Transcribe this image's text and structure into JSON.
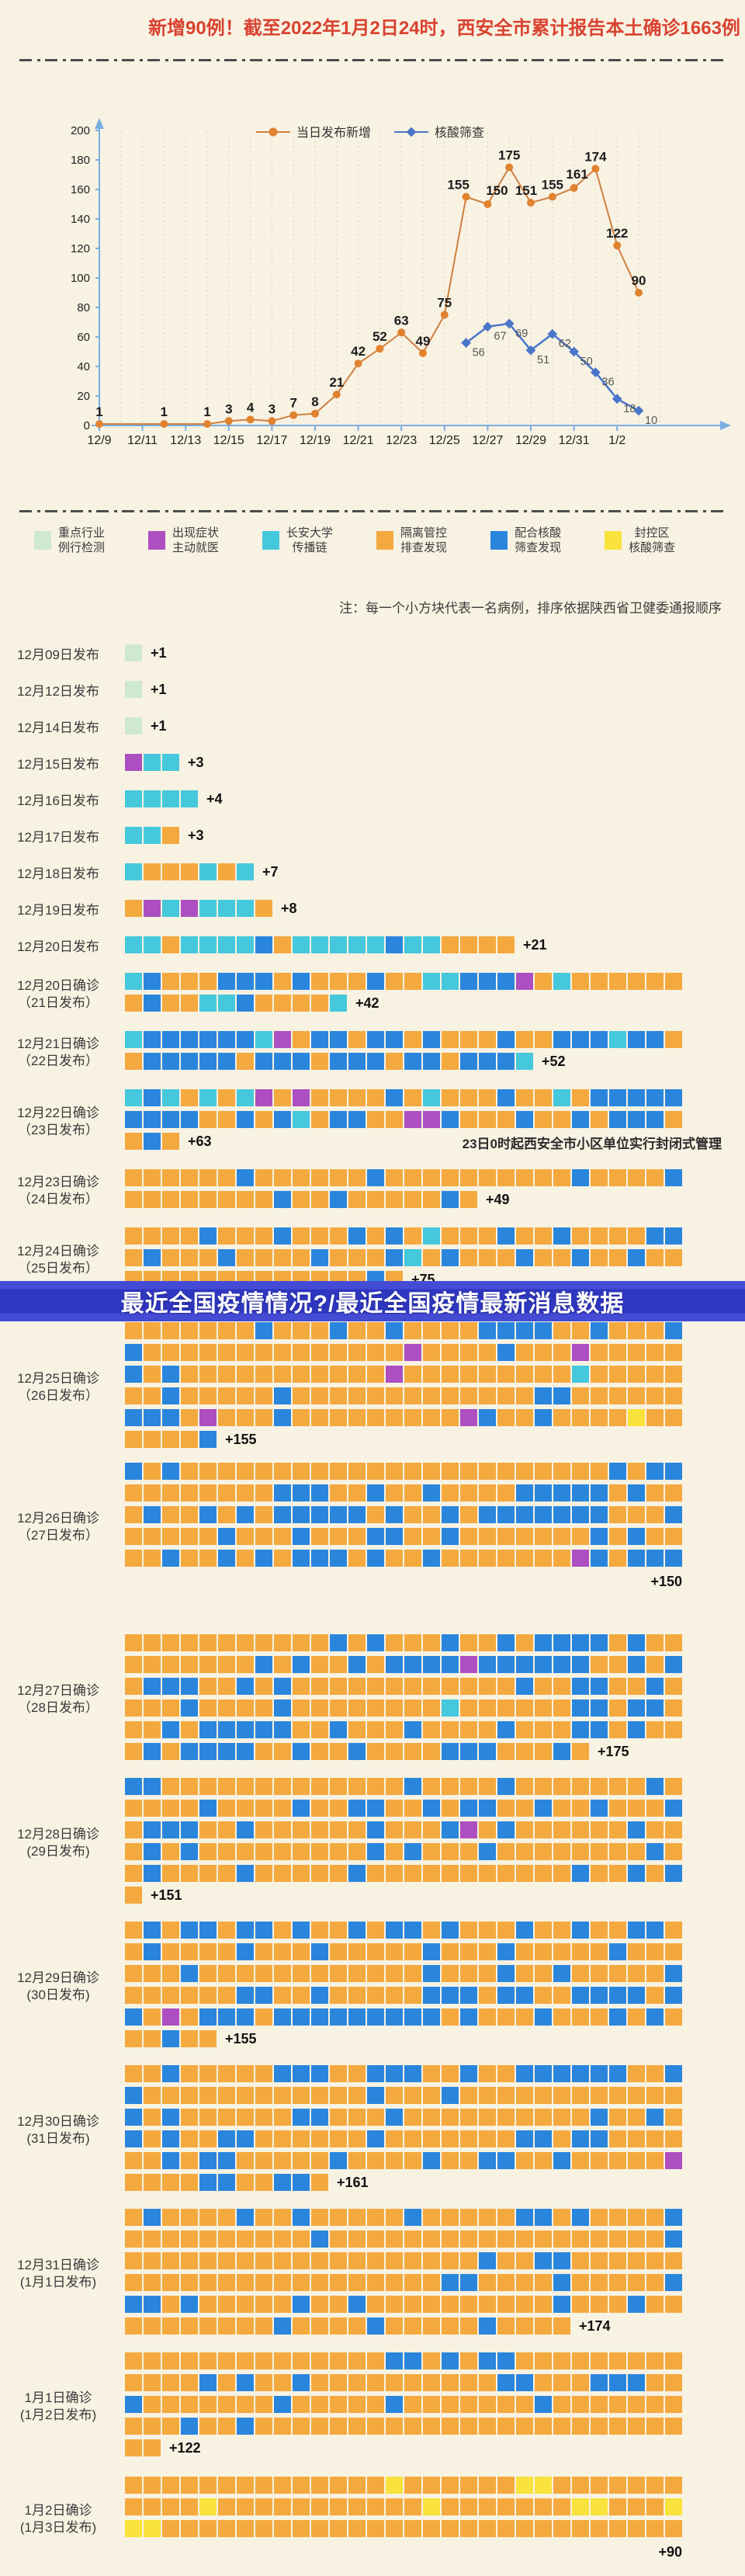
{
  "header": {
    "title": "新增90例！截至2022年1月2日24时，西安全市累计报告本土确诊1663例"
  },
  "banner": {
    "text": "最近全国疫情情况?/最近全国疫情最新消息数据"
  },
  "chart_data": {
    "type": "line",
    "title": "",
    "xlabel": "",
    "ylabel": "",
    "ylim": [
      0,
      200
    ],
    "y_ticks": [
      0,
      20,
      40,
      60,
      80,
      100,
      120,
      140,
      160,
      180,
      200
    ],
    "grid": "vertical-dashed-daily",
    "legend_position": "top-right-inside",
    "x_ticks": [
      {
        "d": 0,
        "label": "12/9"
      },
      {
        "d": 2,
        "label": "12/11"
      },
      {
        "d": 4,
        "label": "12/13"
      },
      {
        "d": 6,
        "label": "12/15"
      },
      {
        "d": 8,
        "label": "12/17"
      },
      {
        "d": 10,
        "label": "12/19"
      },
      {
        "d": 12,
        "label": "12/21"
      },
      {
        "d": 14,
        "label": "12/23"
      },
      {
        "d": 16,
        "label": "12/25"
      },
      {
        "d": 18,
        "label": "12/27"
      },
      {
        "d": 20,
        "label": "12/29"
      },
      {
        "d": 22,
        "label": "12/31"
      },
      {
        "d": 24,
        "label": "1/2"
      }
    ],
    "series": [
      {
        "name": "当日发布新增",
        "color": "#e0822e",
        "line_color": "#cf8040",
        "marker": "circle",
        "label_style": "bold-black-above",
        "points": [
          [
            0,
            1
          ],
          [
            3,
            1
          ],
          [
            5,
            1
          ],
          [
            6,
            3
          ],
          [
            7,
            4
          ],
          [
            8,
            3
          ],
          [
            9,
            7
          ],
          [
            10,
            8
          ],
          [
            11,
            21
          ],
          [
            12,
            42
          ],
          [
            13,
            52
          ],
          [
            14,
            63
          ],
          [
            15,
            49
          ],
          [
            16,
            75
          ],
          [
            17,
            155
          ],
          [
            18,
            150
          ],
          [
            19,
            175
          ],
          [
            20,
            151
          ],
          [
            21,
            155
          ],
          [
            22,
            161
          ],
          [
            23,
            174
          ],
          [
            24,
            122
          ],
          [
            25,
            90
          ]
        ]
      },
      {
        "name": "核酸筛查",
        "color": "#4a76c9",
        "line_color": "#4a76c9",
        "marker": "diamond",
        "label_style": "gray-below-right",
        "points": [
          [
            17,
            56
          ],
          [
            18,
            67
          ],
          [
            19,
            69
          ],
          [
            20,
            51
          ],
          [
            21,
            62
          ],
          [
            22,
            50
          ],
          [
            23,
            36
          ],
          [
            24,
            18
          ],
          [
            25,
            10
          ]
        ]
      }
    ]
  },
  "legend": {
    "items": [
      {
        "line1": "重点行业",
        "line2": "例行检测",
        "color": "#cfe8d2",
        "key": "G"
      },
      {
        "line1": "出现症状",
        "line2": "主动就医",
        "color": "#ad4fc0",
        "key": "P"
      },
      {
        "line1": "长安大学",
        "line2": "传播链",
        "color": "#45c8db",
        "key": "C"
      },
      {
        "line1": "隔离管控",
        "line2": "排查发现",
        "color": "#f4a93f",
        "key": "O"
      },
      {
        "line1": "配合核酸",
        "line2": "筛查发现",
        "color": "#2a86dd",
        "key": "B"
      },
      {
        "line1": "封控区",
        "line2": "核酸筛查",
        "color": "#f9e23b",
        "key": "Y"
      }
    ],
    "note": "注：每一个小方块代表一名病例，排序依据陕西省卫健委通报顺序"
  },
  "waffle": {
    "palette": {
      "G": "#cfe8d2",
      "P": "#ad4fc0",
      "C": "#45c8db",
      "O": "#f4a93f",
      "B": "#2a86dd",
      "Y": "#f9e23b"
    },
    "rows": [
      {
        "label": "12月09日发布",
        "sub": "",
        "count": "+1",
        "count_below": false,
        "lines": [
          "G"
        ]
      },
      {
        "label": "12月12日发布",
        "sub": "",
        "count": "+1",
        "count_below": false,
        "lines": [
          "G"
        ]
      },
      {
        "label": "12月14日发布",
        "sub": "",
        "count": "+1",
        "count_below": false,
        "lines": [
          "G"
        ]
      },
      {
        "label": "12月15日发布",
        "sub": "",
        "count": "+3",
        "count_below": false,
        "lines": [
          "PCC"
        ]
      },
      {
        "label": "12月16日发布",
        "sub": "",
        "count": "+4",
        "count_below": false,
        "lines": [
          "CCCC"
        ]
      },
      {
        "label": "12月17日发布",
        "sub": "",
        "count": "+3",
        "count_below": false,
        "lines": [
          "CCO"
        ]
      },
      {
        "label": "12月18日发布",
        "sub": "",
        "count": "+7",
        "count_below": false,
        "lines": [
          "COOOCOC"
        ]
      },
      {
        "label": "12月19日发布",
        "sub": "",
        "count": "+8",
        "count_below": false,
        "lines": [
          "OPCPCCCO"
        ]
      },
      {
        "label": "12月20日发布",
        "sub": "",
        "count": "+21",
        "count_below": false,
        "lines": [
          "CCOCCCCBOCCCCCBCCOOOO"
        ]
      },
      {
        "label": "12月20日确诊",
        "sub": "（21日发布）",
        "count": "+42",
        "count_below": false,
        "lines": [
          "CBOOOBBBOBOOOBOOCCBBBPOCOOOOOO",
          "OBOOCCBOOOOC"
        ]
      },
      {
        "label": "12月21日确诊",
        "sub": "（22日发布）",
        "count": "+52",
        "count_below": false,
        "lines": [
          "CBBBBBBCPOBBOBBOBOOOBOOBBBCBBO",
          "OBBBBBOBBBOBBBOBBOBBBC"
        ]
      },
      {
        "label": "12月22日确诊",
        "sub": "（23日发布）",
        "count": "+63",
        "count_below": false,
        "note": "23日0时起西安全市小区单位实行封闭式管理",
        "lines": [
          "CBCOCOCPOPOOOOBOCOOOBOOCOBBBBB",
          "BBBBOOBOBCOBBOOPPBOOOBOOBOBBBO",
          "OBO"
        ]
      },
      {
        "label": "12月23日确诊",
        "sub": "（24日发布）",
        "count": "+49",
        "count_below": false,
        "lines": [
          "OOOOOOBOOOOOOBOOOOOOOOOOBOOOOB",
          "OOOOOOOOBOOBOOOOOBO"
        ]
      },
      {
        "label": "12月24日确诊",
        "sub": "（25日发布）",
        "count": "+75",
        "count_below": false,
        "lines": [
          "OOOOBOOOBOOOBOBOCOOOBOOBOOOOBB",
          "OBOOOBOOOOBOOOBCOBOOOBOOBOOBOO",
          "OOOOOOOOOOOOOBO"
        ]
      },
      {
        "label": "12月25日确诊",
        "sub": "（26日发布）",
        "count": "+155",
        "count_below": false,
        "lines": [
          "OOOOOOOBOOOBOOBOOOOBBBBOOBOOOB",
          "BOOOOOOOOOOOOOOPOOOOBOOOPOOOOO",
          "BOBOOOOOOOOOOOPOOOOOOOOOCOOOOO",
          "OOBOOOOOBOOOOOOOOOOOOOBBOOOOOO",
          "BBBOPOOOBOOOOOOOOOPBOOBOOOOYOO",
          "OOOOB"
        ]
      },
      {
        "label": "12月26日确诊",
        "sub": "（27日发布）",
        "count": "+150",
        "count_below": true,
        "lines": [
          "BOBOOOOOOOOOOOOOOOOOOOOOOOBOBB",
          "OOOOOOOOBBBOOBOOBOOOOBBBBBOBOO",
          "OBOOBOBOBBBBBOBOOBOBBBBBBBOOOB",
          "OOOOOBOOOBOOOBBOOBOOOOOOOBOBOO",
          "OOBOOBOBOBBBOBOOBOOOOOOOPBOBBB"
        ]
      },
      {
        "label": "12月27日确诊",
        "sub": "（28日发布）",
        "count": "+175",
        "count_below": false,
        "lines": [
          "OOOOOOOOOOOBOBOOOBOOBOBBBBOBOO",
          "OOOOOOOBOBOOBOBBBBPBBBBBBOOBOB",
          "OBBBOOBOBOOOOOOOOOOOOBOOBBOOBO",
          "OOOBOOOOBOOOOOOOOCOOOOOOBBOBBO",
          "OOBOBBBBBOOBOOOBOOOOBOOOBBOBOO",
          "OBOBBBBOOBOOBOOOOBBBOOOBO"
        ]
      },
      {
        "label": "12月28日确诊",
        "sub": "(29日发布)",
        "count": "+151",
        "count_below": false,
        "lines": [
          "BBOOOOOOOOOOOOOBOOOOBOOOOOOOBO",
          "OOOOBOOOOBOOBBOOBOBBOOBOOBOOOB",
          "OBBBOOBOOOOOOBOOOBPOBOOOOOOBOO",
          "OBOBOOOOOOOOOBOBOOOBOOOOOOOOBO",
          "OBOOOOBOOOOOBOOOOOOOOOOOBOOBOB",
          "O"
        ]
      },
      {
        "label": "12月29日确诊",
        "sub": "(30日发布)",
        "count": "+155",
        "count_below": false,
        "lines": [
          "OBOBBOBBOBOOBOBBOBOOOBOOBOOBBO",
          "OBOOOOBOOOBOOOOOBOOOBOOOOOBOOO",
          "OOOBOOOOOOOOOOOOBOOOBOOBOOOOOB",
          "OOOOOOBBOOBOOOOOBBBOBBOOBBBBOB",
          "BOPOBBBOBBBBBBBBBOBOOOBOOOBOBO",
          "OOBOO"
        ]
      },
      {
        "label": "12月30日确诊",
        "sub": "(31日发布)",
        "count": "+161",
        "count_below": false,
        "lines": [
          "OOBOOOOOBBBOOBBBOOBOOBBBBBBOOB",
          "BOOOOOOOOOOOOBOOOBOOOOOOOOOOOO",
          "BOBOOOOOOBBOOOBOOOOOOOOOOBOOBO",
          "BOBOOBBOOOOOOBOOOOOOOBBOBBOOOO",
          "OOBOBBOOOOOBOOOOBOOBBOOBOOOOOP",
          "OOOOBBOOBBO"
        ]
      },
      {
        "label": "12月31日确诊",
        "sub": "(1月1日发布)",
        "count": "+174",
        "count_below": false,
        "lines": [
          "OBOOOOBOOBOOOOOBOOOOOBBOBOOOOB",
          "OOOOOOOOOOBOOOOOOOOOOOOOOOOOOB",
          "OOOOOOOOOOOOOOOOOOOBOOBBOOOOOO",
          "OOOOOOOOOOOOOOOOOBBOOOOBOOOOOB",
          "BBOBOOOOOBOOBOOOOOOOOOOBOOOBOO",
          "OOOOOOOOBOOOOBOOOOOBOOOO"
        ]
      },
      {
        "label": "1月1日确诊",
        "sub": "(1月2日发布)",
        "count": "+122",
        "count_below": false,
        "lines": [
          "OOOOOOOOOOOOOOBBOBOBBOOOOOOOOO",
          "OOOOBOBOOBOOOOOOOOOOBBOOOBBBOO",
          "BOOOOOOOBOOOOOBOOOOOOOBOOOOOOO",
          "OOOBOOBOOOOOOOOOOOOOOOOOOOOOOO",
          "OO"
        ]
      },
      {
        "label": "1月2日确诊",
        "sub": "(1月3日发布)",
        "count": "+90",
        "count_below": true,
        "lines": [
          "OOOOOOOOOOOOOOYOOOOOOYYOOOOOOO",
          "OOOOYOOOOOOOOOOOYOOOOOOOYYOOOY",
          "YYOOOOOOOOOOOOOOOOOOOOOOOOOOOO"
        ]
      }
    ]
  }
}
